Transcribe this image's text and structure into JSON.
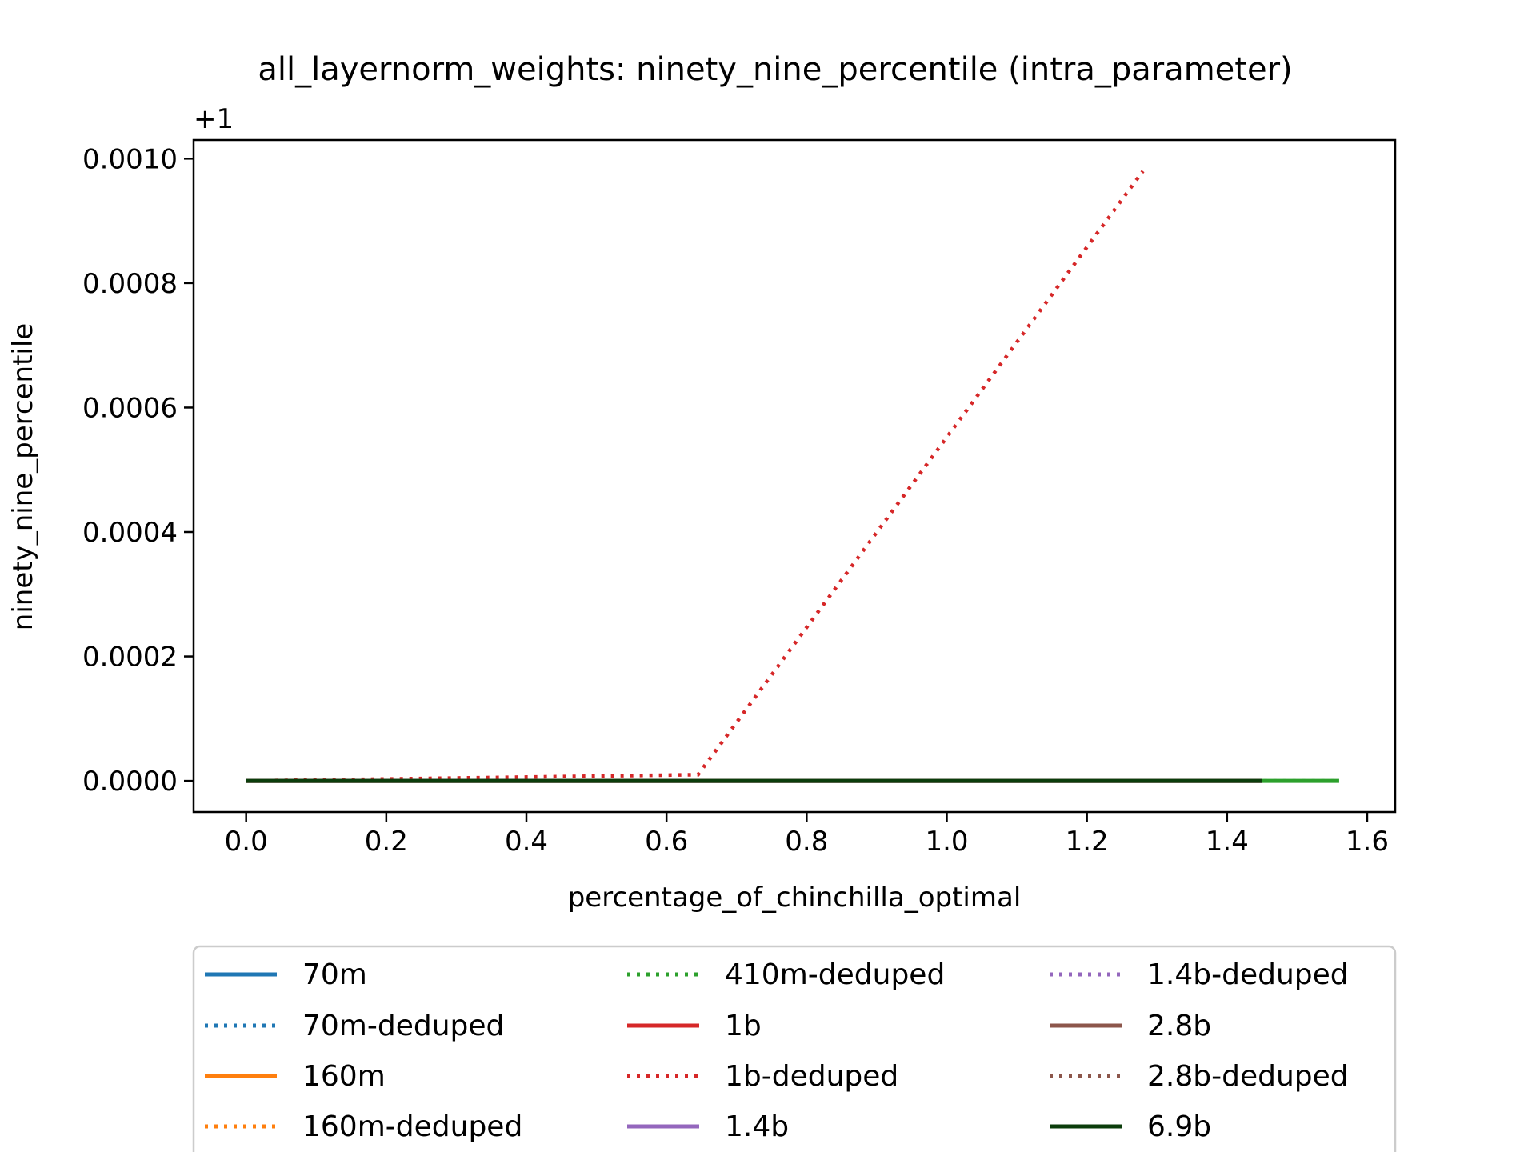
{
  "chart_data": {
    "type": "line",
    "title": "all_layernorm_weights: ninety_nine_percentile (intra_parameter)",
    "xlabel": "percentage_of_chinchilla_optimal",
    "ylabel": "ninety_nine_percentile",
    "y_offset_label": "+1",
    "xlim": [
      -0.075,
      1.64
    ],
    "ylim": [
      -5e-05,
      0.00103
    ],
    "x_ticks": [
      0.0,
      0.2,
      0.4,
      0.6,
      0.8,
      1.0,
      1.2,
      1.4,
      1.6
    ],
    "x_tick_labels": [
      "0.0",
      "0.2",
      "0.4",
      "0.6",
      "0.8",
      "1.0",
      "1.2",
      "1.4",
      "1.6"
    ],
    "y_ticks": [
      0.0,
      0.0002,
      0.0004,
      0.0006,
      0.0008,
      0.001
    ],
    "y_tick_labels": [
      "0.0000",
      "0.0002",
      "0.0004",
      "0.0006",
      "0.0008",
      "0.0010"
    ],
    "grid": false,
    "legend_position": "below plot, 3 columns",
    "series": [
      {
        "name": "70m",
        "color": "#1f77b4",
        "dash": "solid",
        "x": [],
        "y": []
      },
      {
        "name": "70m-deduped",
        "color": "#1f77b4",
        "dash": "dotted",
        "x": [],
        "y": []
      },
      {
        "name": "160m",
        "color": "#ff7f0e",
        "dash": "solid",
        "x": [],
        "y": []
      },
      {
        "name": "160m-deduped",
        "color": "#ff7f0e",
        "dash": "dotted",
        "x": [],
        "y": []
      },
      {
        "name": "410m-deduped",
        "color": "#2ca02c",
        "dash": "dotted",
        "x": [
          0.0,
          1.56
        ],
        "y": [
          0.0,
          0.0
        ]
      },
      {
        "name": "1b",
        "color": "#d62728",
        "dash": "solid",
        "x": [
          0.0,
          1.45
        ],
        "y": [
          0.0,
          0.0
        ]
      },
      {
        "name": "1b-deduped",
        "color": "#d62728",
        "dash": "dotted",
        "x": [
          0.0,
          0.645,
          1.28
        ],
        "y": [
          0.0,
          1e-05,
          0.00098
        ]
      },
      {
        "name": "1.4b",
        "color": "#9467bd",
        "dash": "solid",
        "x": [
          0.0,
          1.45
        ],
        "y": [
          0.0,
          0.0
        ]
      },
      {
        "name": "1.4b-deduped",
        "color": "#9467bd",
        "dash": "dotted",
        "x": [
          0.0,
          1.45
        ],
        "y": [
          0.0,
          0.0
        ]
      },
      {
        "name": "2.8b",
        "color": "#8c564b",
        "dash": "solid",
        "x": [
          0.0,
          1.45
        ],
        "y": [
          0.0,
          0.0
        ]
      },
      {
        "name": "2.8b-deduped",
        "color": "#8c564b",
        "dash": "dotted",
        "x": [
          0.0,
          1.45
        ],
        "y": [
          0.0,
          0.0
        ]
      },
      {
        "name": "6.9b",
        "color": "#0b3d0b",
        "dash": "solid",
        "x": [
          0.0,
          1.45
        ],
        "y": [
          0.0,
          0.0
        ]
      }
    ],
    "extra_segments": [
      {
        "series_color": "#2ca02c",
        "dash": "solid",
        "x": [
          1.45,
          1.56
        ],
        "y": [
          0.0,
          0.0
        ]
      }
    ]
  }
}
